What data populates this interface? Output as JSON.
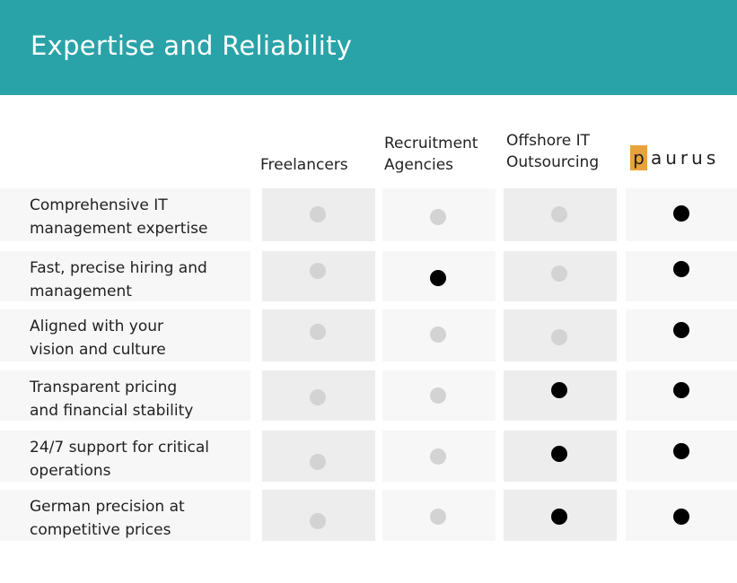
{
  "title": "Expertise and Reliability",
  "columns": [
    {
      "lines": [
        "Freelancers"
      ]
    },
    {
      "lines": [
        "Recruitment",
        "Agencies"
      ]
    },
    {
      "lines": [
        "Offshore IT",
        "Outsourcing"
      ]
    }
  ],
  "logo": {
    "first": "p",
    "rest": "aurus"
  },
  "rows": [
    {
      "lines": [
        "Comprehensive IT",
        "management expertise"
      ],
      "values": [
        false,
        false,
        false,
        true
      ]
    },
    {
      "lines": [
        "Fast, precise hiring and",
        "management"
      ],
      "values": [
        false,
        true,
        false,
        true
      ]
    },
    {
      "lines": [
        "Aligned with your",
        "vision and culture"
      ],
      "values": [
        false,
        false,
        false,
        true
      ]
    },
    {
      "lines": [
        "Transparent pricing",
        "and financial stability"
      ],
      "values": [
        false,
        false,
        true,
        true
      ]
    },
    {
      "lines": [
        "24/7 support for critical",
        "operations"
      ],
      "values": [
        false,
        false,
        true,
        true
      ]
    },
    {
      "lines": [
        "German precision at",
        "competitive prices"
      ],
      "values": [
        false,
        false,
        true,
        true
      ]
    }
  ],
  "colors": {
    "header": "#2aa3a8",
    "logo_accent": "#e8a33a",
    "dot_on": "#000000",
    "dot_off": "#d3d3d3"
  }
}
